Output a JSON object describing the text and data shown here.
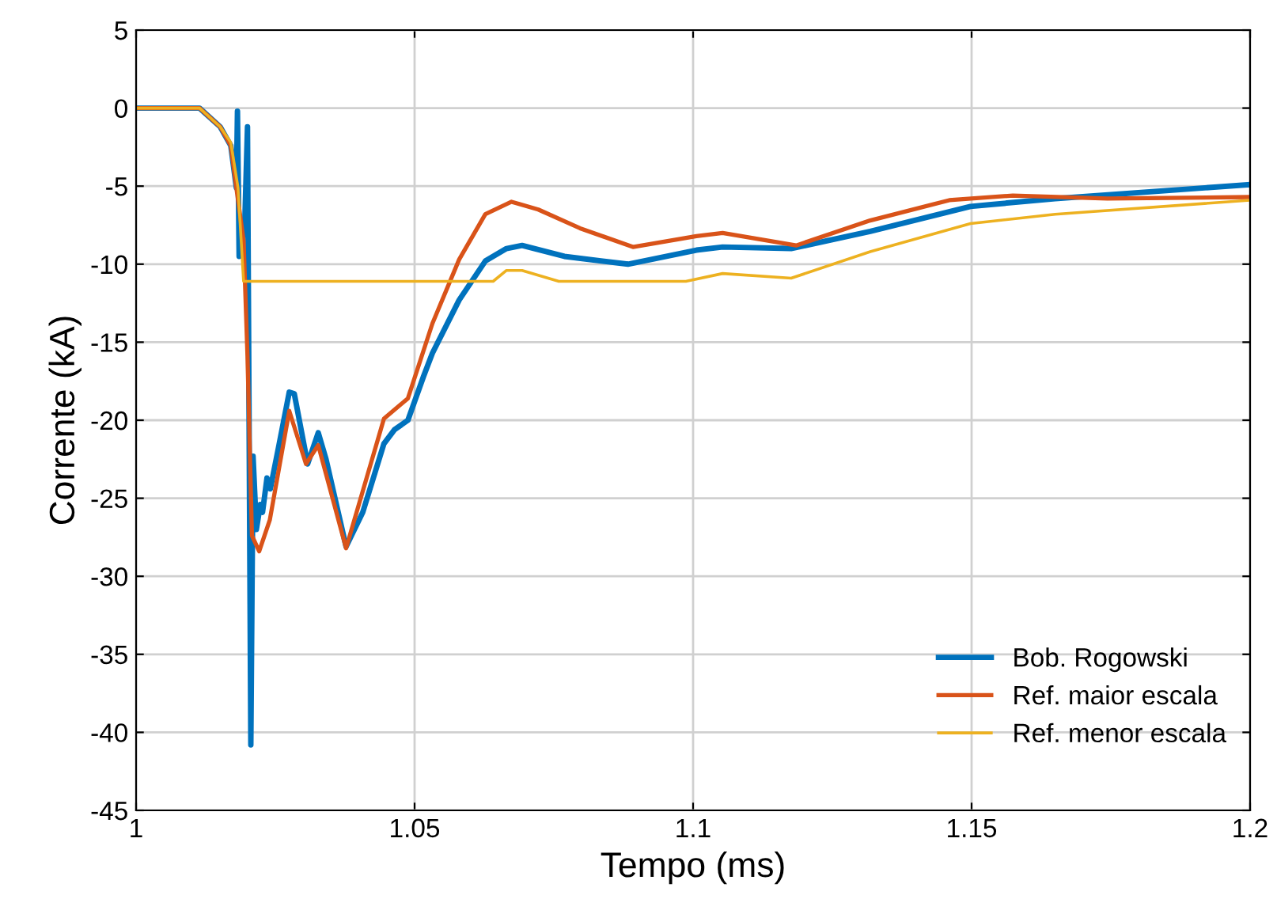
{
  "chart_data": {
    "type": "line",
    "xlabel": "Tempo (ms)",
    "ylabel": "Corrente (kA)",
    "xlim": [
      1,
      1.2
    ],
    "xticks": [
      1,
      1.05,
      1.1,
      1.15,
      1.2
    ],
    "ylim": [
      -45,
      5
    ],
    "yticks": [
      -45,
      -40,
      -35,
      -30,
      -25,
      -20,
      -15,
      -10,
      -5,
      0,
      5
    ],
    "grid": true,
    "legend": "bottom right",
    "marker": "none",
    "line_style": "solid",
    "series": [
      {
        "name": "Bob. Rogowski",
        "color": "#0072bd",
        "x": [
          1.0,
          1.0114,
          1.0151,
          1.017,
          1.018,
          1.0182,
          1.0185,
          1.0195,
          1.02,
          1.0206,
          1.021,
          1.0216,
          1.0223,
          1.0227,
          1.0235,
          1.0241,
          1.0256,
          1.0275,
          1.0284,
          1.0308,
          1.0327,
          1.0341,
          1.0377,
          1.0407,
          1.0445,
          1.0464,
          1.0488,
          1.0516,
          1.0532,
          1.058,
          1.0627,
          1.0665,
          1.0693,
          1.0769,
          1.0883,
          1.1006,
          1.1053,
          1.1176,
          1.1318,
          1.1498,
          1.165,
          1.2
        ],
        "values": [
          0,
          0,
          -1.2,
          -2.4,
          -5.1,
          -0.2,
          -9.5,
          -7.5,
          -1.2,
          -40.8,
          -22.3,
          -27,
          -25.4,
          -25.9,
          -23.7,
          -24.4,
          -21.7,
          -18.2,
          -18.3,
          -22.8,
          -20.8,
          -22.5,
          -28.1,
          -25.9,
          -21.5,
          -20.6,
          -20,
          -17.2,
          -15.7,
          -12.3,
          -9.8,
          -9,
          -8.8,
          -9.5,
          -10,
          -9.1,
          -8.9,
          -9,
          -7.9,
          -6.3,
          -5.8,
          -4.9
        ]
      },
      {
        "name": "Ref. maior escala",
        "color": "#d95319",
        "x": [
          1.0,
          1.0114,
          1.0151,
          1.017,
          1.018,
          1.0193,
          1.02,
          1.0208,
          1.0221,
          1.024,
          1.0275,
          1.0305,
          1.0327,
          1.0377,
          1.0445,
          1.0488,
          1.0532,
          1.058,
          1.0627,
          1.0674,
          1.0722,
          1.0797,
          1.0892,
          1.1006,
          1.1053,
          1.1185,
          1.1318,
          1.146,
          1.1574,
          1.1744,
          1.2
        ],
        "values": [
          0,
          0,
          -1.2,
          -2.4,
          -5.1,
          -8.5,
          -15.9,
          -27.4,
          -28.4,
          -26.4,
          -19.4,
          -22.8,
          -21.6,
          -28.2,
          -19.9,
          -18.6,
          -13.8,
          -9.7,
          -6.8,
          -6,
          -6.5,
          -7.7,
          -8.9,
          -8.2,
          -8,
          -8.8,
          -7.2,
          -5.9,
          -5.6,
          -5.8,
          -5.7
        ]
      },
      {
        "name": "Ref. menor escala",
        "color": "#edb120",
        "x": [
          1.0,
          1.0114,
          1.0151,
          1.017,
          1.0183,
          1.0193,
          1.0641,
          1.0665,
          1.0693,
          1.0759,
          1.0987,
          1.1053,
          1.1176,
          1.1318,
          1.1498,
          1.165,
          1.2
        ],
        "values": [
          0,
          0,
          -1.2,
          -2.2,
          -5.1,
          -11.1,
          -11.1,
          -10.4,
          -10.4,
          -11.1,
          -11.1,
          -10.6,
          -10.9,
          -9.2,
          -7.4,
          -6.8,
          -5.9
        ]
      }
    ]
  }
}
